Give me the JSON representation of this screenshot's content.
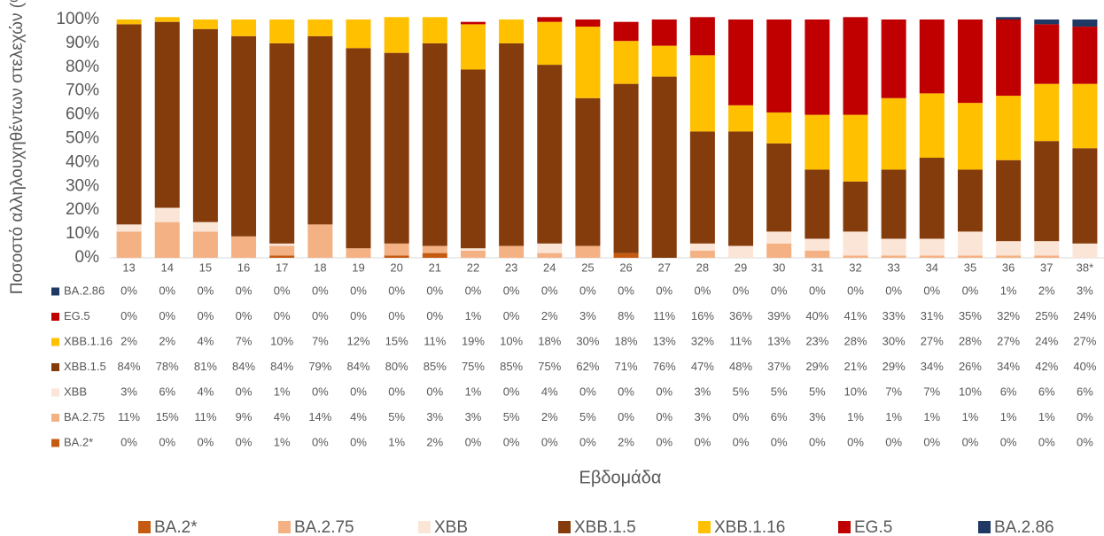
{
  "chart_data": {
    "type": "stacked_bar",
    "y_label": "Ποσοστό αλληλουχηθέντων στελεχών (%)",
    "x_label": "Εβδομάδα",
    "categories": [
      "13",
      "14",
      "15",
      "16",
      "17",
      "18",
      "19",
      "20",
      "21",
      "22",
      "23",
      "24",
      "25",
      "26",
      "27",
      "28",
      "29",
      "30",
      "31",
      "32",
      "33",
      "34",
      "35",
      "36",
      "37",
      "38*"
    ],
    "ylim": [
      0,
      100
    ],
    "yticks": [
      {
        "value": 0,
        "label": "0%"
      },
      {
        "value": 10,
        "label": "10%"
      },
      {
        "value": 20,
        "label": "20%"
      },
      {
        "value": 30,
        "label": "30%"
      },
      {
        "value": 40,
        "label": "40%"
      },
      {
        "value": 50,
        "label": "50%"
      },
      {
        "value": 60,
        "label": "60%"
      },
      {
        "value": 70,
        "label": "70%"
      },
      {
        "value": 80,
        "label": "80%"
      },
      {
        "value": 90,
        "label": "90%"
      },
      {
        "value": 100,
        "label": "100%"
      }
    ],
    "legend": "bottom",
    "series": [
      {
        "name": "BA.2*",
        "color": "#c55a11",
        "values": [
          0,
          0,
          0,
          0,
          1,
          0,
          0,
          1,
          2,
          0,
          0,
          0,
          0,
          2,
          0,
          0,
          0,
          0,
          0,
          0,
          0,
          0,
          0,
          0,
          0,
          0
        ],
        "value_labels": [
          "0%",
          "0%",
          "0%",
          "0%",
          "1%",
          "0%",
          "0%",
          "1%",
          "2%",
          "0%",
          "0%",
          "0%",
          "0%",
          "2%",
          "0%",
          "0%",
          "0%",
          "0%",
          "0%",
          "0%",
          "0%",
          "0%",
          "0%",
          "0%",
          "0%",
          "0%"
        ]
      },
      {
        "name": "BA.2.75",
        "color": "#f4b183",
        "values": [
          11,
          15,
          11,
          9,
          4,
          14,
          4,
          5,
          3,
          3,
          5,
          2,
          5,
          0,
          0,
          3,
          0,
          6,
          3,
          1,
          1,
          1,
          1,
          1,
          1,
          0
        ],
        "value_labels": [
          "11%",
          "15%",
          "11%",
          "9%",
          "4%",
          "14%",
          "4%",
          "5%",
          "3%",
          "3%",
          "5%",
          "2%",
          "5%",
          "0%",
          "0%",
          "3%",
          "0%",
          "6%",
          "3%",
          "1%",
          "1%",
          "1%",
          "1%",
          "1%",
          "1%",
          "0%"
        ]
      },
      {
        "name": "XBB",
        "color": "#fbe5d6",
        "values": [
          3,
          6,
          4,
          0,
          1,
          0,
          0,
          0,
          0,
          1,
          0,
          4,
          0,
          0,
          0,
          3,
          5,
          5,
          5,
          10,
          7,
          7,
          10,
          6,
          6,
          6
        ],
        "value_labels": [
          "3%",
          "6%",
          "4%",
          "0%",
          "1%",
          "0%",
          "0%",
          "0%",
          "0%",
          "1%",
          "0%",
          "4%",
          "0%",
          "0%",
          "0%",
          "3%",
          "5%",
          "5%",
          "5%",
          "10%",
          "7%",
          "7%",
          "10%",
          "6%",
          "6%",
          "6%"
        ]
      },
      {
        "name": "XBB.1.5",
        "color": "#843c0c",
        "values": [
          84,
          78,
          81,
          84,
          84,
          79,
          84,
          80,
          85,
          75,
          85,
          75,
          62,
          71,
          76,
          47,
          48,
          37,
          29,
          21,
          29,
          34,
          26,
          34,
          42,
          40
        ],
        "value_labels": [
          "84%",
          "78%",
          "81%",
          "84%",
          "84%",
          "79%",
          "84%",
          "80%",
          "85%",
          "75%",
          "85%",
          "75%",
          "62%",
          "71%",
          "76%",
          "47%",
          "48%",
          "37%",
          "29%",
          "21%",
          "29%",
          "34%",
          "26%",
          "34%",
          "42%",
          "40%"
        ]
      },
      {
        "name": "XBB.1.16",
        "color": "#ffc000",
        "values": [
          2,
          2,
          4,
          7,
          10,
          7,
          12,
          15,
          11,
          19,
          10,
          18,
          30,
          18,
          13,
          32,
          11,
          13,
          23,
          28,
          30,
          27,
          28,
          27,
          24,
          27
        ],
        "value_labels": [
          "2%",
          "2%",
          "4%",
          "7%",
          "10%",
          "7%",
          "12%",
          "15%",
          "11%",
          "19%",
          "10%",
          "18%",
          "30%",
          "18%",
          "13%",
          "32%",
          "11%",
          "13%",
          "23%",
          "28%",
          "30%",
          "27%",
          "28%",
          "27%",
          "24%",
          "27%"
        ]
      },
      {
        "name": "EG.5",
        "color": "#c00000",
        "values": [
          0,
          0,
          0,
          0,
          0,
          0,
          0,
          0,
          0,
          1,
          0,
          2,
          3,
          8,
          11,
          16,
          36,
          39,
          40,
          41,
          33,
          31,
          35,
          32,
          25,
          24
        ],
        "value_labels": [
          "0%",
          "0%",
          "0%",
          "0%",
          "0%",
          "0%",
          "0%",
          "0%",
          "0%",
          "1%",
          "0%",
          "2%",
          "3%",
          "8%",
          "11%",
          "16%",
          "36%",
          "39%",
          "40%",
          "41%",
          "33%",
          "31%",
          "35%",
          "32%",
          "25%",
          "24%"
        ]
      },
      {
        "name": "BA.2.86",
        "color": "#1f3864",
        "values": [
          0,
          0,
          0,
          0,
          0,
          0,
          0,
          0,
          0,
          0,
          0,
          0,
          0,
          0,
          0,
          0,
          0,
          0,
          0,
          0,
          0,
          0,
          0,
          1,
          2,
          3
        ],
        "value_labels": [
          "0%",
          "0%",
          "0%",
          "0%",
          "0%",
          "0%",
          "0%",
          "0%",
          "0%",
          "0%",
          "0%",
          "0%",
          "0%",
          "0%",
          "0%",
          "0%",
          "0%",
          "0%",
          "0%",
          "0%",
          "0%",
          "0%",
          "0%",
          "1%",
          "2%",
          "3%"
        ]
      }
    ]
  }
}
